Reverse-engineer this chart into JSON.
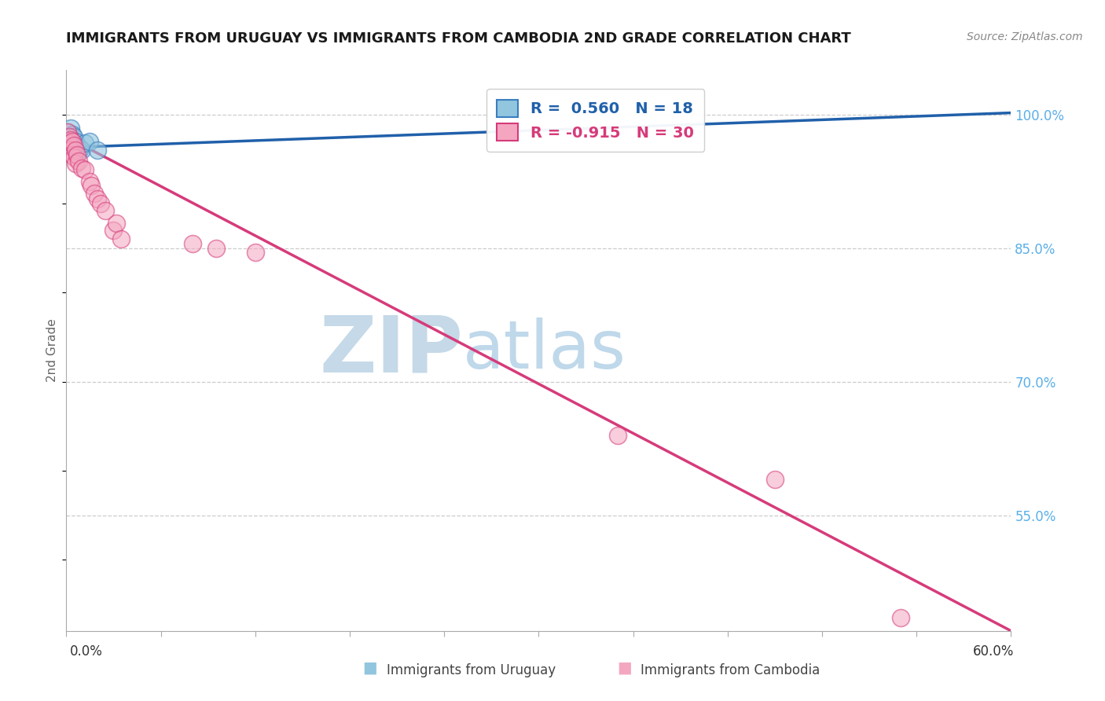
{
  "title": "IMMIGRANTS FROM URUGUAY VS IMMIGRANTS FROM CAMBODIA 2ND GRADE CORRELATION CHART",
  "source": "Source: ZipAtlas.com",
  "ylabel": "2nd Grade",
  "y_ticks": [
    0.55,
    0.7,
    0.85,
    1.0
  ],
  "y_tick_labels": [
    "55.0%",
    "70.0%",
    "85.0%",
    "100.0%"
  ],
  "xmin": 0.0,
  "xmax": 0.6,
  "ymin": 0.42,
  "ymax": 1.05,
  "legend_label_blue": "Immigrants from Uruguay",
  "legend_label_pink": "Immigrants from Cambodia",
  "R_blue": 0.56,
  "N_blue": 18,
  "R_pink": -0.915,
  "N_pink": 30,
  "blue_color": "#92c5de",
  "pink_color": "#f4a6c0",
  "blue_edge_color": "#3a7ebf",
  "pink_edge_color": "#d63b7a",
  "blue_line_color": "#2060aa",
  "pink_line_color": "#d63b7a",
  "watermark_zip": "ZIP",
  "watermark_atlas": "atlas",
  "watermark_color_zip": "#c5d9e8",
  "watermark_color_atlas": "#b8d4e8",
  "blue_x": [
    0.001,
    0.002,
    0.002,
    0.003,
    0.003,
    0.004,
    0.004,
    0.005,
    0.005,
    0.006,
    0.006,
    0.007,
    0.008,
    0.009,
    0.01,
    0.012,
    0.015,
    0.02
  ],
  "blue_y": [
    0.98,
    0.975,
    0.968,
    0.985,
    0.972,
    0.978,
    0.965,
    0.975,
    0.963,
    0.97,
    0.96,
    0.965,
    0.958,
    0.962,
    0.96,
    0.968,
    0.97,
    0.96
  ],
  "pink_x": [
    0.001,
    0.002,
    0.002,
    0.003,
    0.003,
    0.004,
    0.004,
    0.005,
    0.005,
    0.006,
    0.006,
    0.007,
    0.008,
    0.01,
    0.012,
    0.015,
    0.016,
    0.018,
    0.02,
    0.022,
    0.025,
    0.03,
    0.032,
    0.035,
    0.08,
    0.095,
    0.12,
    0.35,
    0.45,
    0.53
  ],
  "pink_y": [
    0.98,
    0.975,
    0.968,
    0.972,
    0.96,
    0.97,
    0.955,
    0.965,
    0.952,
    0.96,
    0.945,
    0.955,
    0.948,
    0.94,
    0.938,
    0.925,
    0.92,
    0.912,
    0.905,
    0.9,
    0.892,
    0.87,
    0.878,
    0.86,
    0.855,
    0.85,
    0.845,
    0.64,
    0.59,
    0.435
  ],
  "blue_trend_x0": 0.0,
  "blue_trend_y0": 0.963,
  "blue_trend_x1": 0.6,
  "blue_trend_y1": 1.002,
  "pink_trend_x0": 0.0,
  "pink_trend_y0": 0.975,
  "pink_trend_x1": 0.6,
  "pink_trend_y1": 0.42
}
